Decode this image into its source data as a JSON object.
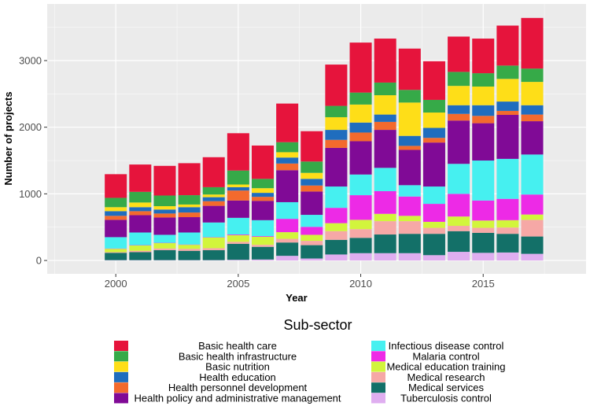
{
  "chart_data": {
    "type": "bar",
    "stacked": true,
    "title": "",
    "xlabel": "Year",
    "ylabel": "Number of projects",
    "ylim": [
      -200,
      3850
    ],
    "xlim": [
      1997.2,
      2019.2
    ],
    "y_ticks": [
      0,
      1000,
      2000,
      3000
    ],
    "x_ticks": [
      2000,
      2005,
      2010,
      2015
    ],
    "grid": true,
    "legend_title": "Sub-sector",
    "legend_position": "bottom",
    "categories": [
      2000,
      2001,
      2002,
      2003,
      2004,
      2005,
      2006,
      2007,
      2008,
      2009,
      2010,
      2011,
      2012,
      2013,
      2014,
      2015,
      2016,
      2017
    ],
    "series": [
      {
        "name": "Tuberculosis control",
        "color": "#dfaef0",
        "values": [
          5,
          5,
          5,
          5,
          5,
          10,
          15,
          70,
          30,
          90,
          110,
          110,
          110,
          80,
          130,
          115,
          120,
          100
        ]
      },
      {
        "name": "Medical services",
        "color": "#137068",
        "values": [
          110,
          120,
          150,
          140,
          150,
          240,
          190,
          200,
          200,
          220,
          230,
          280,
          290,
          320,
          310,
          300,
          280,
          260
        ]
      },
      {
        "name": "Medical research",
        "color": "#f6a8a6",
        "values": [
          10,
          20,
          25,
          30,
          30,
          30,
          30,
          55,
          65,
          130,
          130,
          200,
          190,
          90,
          80,
          75,
          95,
          250
        ]
      },
      {
        "name": "Medical education training",
        "color": "#d2f53c",
        "values": [
          50,
          80,
          80,
          60,
          160,
          100,
          120,
          100,
          90,
          120,
          140,
          110,
          80,
          90,
          140,
          110,
          110,
          80
        ]
      },
      {
        "name": "Malaria control",
        "color": "#ed2ae6",
        "values": [
          5,
          5,
          5,
          5,
          5,
          10,
          10,
          200,
          120,
          230,
          370,
          340,
          290,
          270,
          340,
          300,
          320,
          300
        ]
      },
      {
        "name": "Infectious disease control",
        "color": "#46f0f0",
        "values": [
          170,
          190,
          120,
          180,
          220,
          250,
          240,
          250,
          180,
          320,
          310,
          350,
          170,
          260,
          450,
          600,
          600,
          600
        ]
      },
      {
        "name": "Health policy and administrative management",
        "color": "#800a96",
        "values": [
          260,
          260,
          260,
          230,
          250,
          260,
          290,
          480,
          350,
          580,
          500,
          570,
          530,
          660,
          650,
          560,
          660,
          500
        ]
      },
      {
        "name": "Health personnel development",
        "color": "#f36a2d",
        "values": [
          60,
          60,
          60,
          70,
          70,
          150,
          60,
          100,
          90,
          120,
          130,
          120,
          60,
          70,
          100,
          110,
          60,
          100
        ]
      },
      {
        "name": "Health education",
        "color": "#1f6dbe",
        "values": [
          70,
          60,
          60,
          80,
          60,
          50,
          60,
          90,
          100,
          150,
          150,
          110,
          150,
          150,
          130,
          160,
          140,
          140
        ]
      },
      {
        "name": "Basic nutrition",
        "color": "#fede18",
        "values": [
          60,
          70,
          50,
          40,
          40,
          40,
          70,
          80,
          90,
          190,
          270,
          290,
          500,
          230,
          290,
          280,
          340,
          350
        ]
      },
      {
        "name": "Basic health infrastructure",
        "color": "#36aa48",
        "values": [
          140,
          160,
          160,
          140,
          110,
          210,
          140,
          150,
          170,
          170,
          180,
          190,
          190,
          190,
          210,
          200,
          200,
          200
        ]
      },
      {
        "name": "Basic health care",
        "color": "#e6143c",
        "values": [
          355,
          410,
          445,
          480,
          450,
          560,
          500,
          580,
          455,
          620,
          750,
          660,
          620,
          580,
          530,
          520,
          600,
          760
        ]
      }
    ]
  },
  "legend_columns": [
    [
      "Basic health care",
      "Basic health infrastructure",
      "Basic nutrition",
      "Health education",
      "Health personnel development",
      "Health policy and administrative management"
    ],
    [
      "Infectious disease control",
      "Malaria control",
      "Medical education training",
      "Medical research",
      "Medical services",
      "Tuberculosis control"
    ]
  ],
  "colors": {
    "panel_background": "#ebebeb",
    "grid_major": "#ffffff",
    "tick_text": "#4d4d4d"
  }
}
